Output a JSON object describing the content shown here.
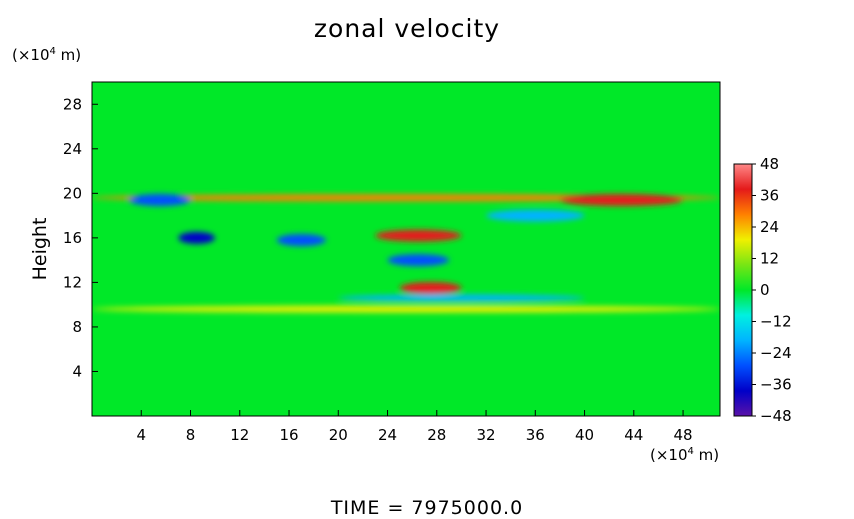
{
  "chart_data": {
    "type": "heatmap",
    "title": "zonal velocity",
    "ylabel": "Height",
    "xlabel": "",
    "x_unit": "(×10⁴ m)",
    "y_unit": "(×10⁴ m)",
    "xlim": [
      0,
      51
    ],
    "ylim": [
      0,
      30
    ],
    "x_ticks": [
      4,
      8,
      12,
      16,
      20,
      24,
      28,
      32,
      36,
      40,
      44,
      48
    ],
    "y_ticks": [
      4,
      8,
      12,
      16,
      20,
      24,
      28
    ],
    "colorbar": {
      "vmin": -48,
      "vmax": 48,
      "ticks": [
        48,
        36,
        24,
        12,
        0,
        -12,
        -24,
        -36,
        -48
      ]
    },
    "background_value": 0,
    "features": [
      {
        "label": "jet band",
        "y": 19.6,
        "x_range": [
          0,
          51
        ],
        "value": 24
      },
      {
        "label": "eastward maximum",
        "y": 19.4,
        "x_range": [
          38,
          48
        ],
        "value": 36
      },
      {
        "label": "westward minimum",
        "y": 19.4,
        "x_range": [
          3,
          8
        ],
        "value": -30
      },
      {
        "label": "westward minimum",
        "y": 16.0,
        "x_range": [
          7,
          10
        ],
        "value": -36
      },
      {
        "label": "westward minimum",
        "y": 15.8,
        "x_range": [
          15,
          19
        ],
        "value": -33
      },
      {
        "label": "eastward maximum",
        "y": 16.2,
        "x_range": [
          23,
          30
        ],
        "value": 34
      },
      {
        "label": "westward minimum",
        "y": 14.0,
        "x_range": [
          24,
          29
        ],
        "value": -30
      },
      {
        "label": "eastward maximum",
        "y": 11.5,
        "x_range": [
          25,
          30
        ],
        "value": 36
      },
      {
        "label": "westward minimum",
        "y": 18.0,
        "x_range": [
          32,
          40
        ],
        "value": -15
      },
      {
        "label": "eastward band",
        "y": 9.6,
        "x_range": [
          0,
          51
        ],
        "value": 15
      },
      {
        "label": "westward band",
        "y": 10.6,
        "x_range": [
          20,
          40
        ],
        "value": -15
      }
    ]
  },
  "time_label": "TIME  =  7975000.0",
  "colors": {
    "background_field": "#00ee22",
    "colormap": [
      "#5a12a8",
      "#0000c8",
      "#0050ff",
      "#00b4ff",
      "#00f0e0",
      "#00e828",
      "#78e614",
      "#f0f000",
      "#ff8000",
      "#e41a1a",
      "#ff8888"
    ]
  }
}
